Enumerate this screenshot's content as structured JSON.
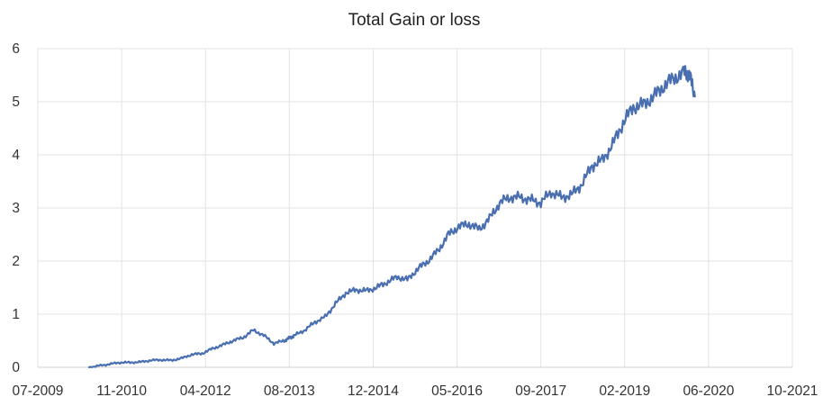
{
  "chart_data": {
    "type": "line",
    "title": "Total Gain or loss",
    "xlabel": "",
    "ylabel": "",
    "x_tick_labels": [
      "07-2009",
      "11-2010",
      "04-2012",
      "08-2013",
      "12-2014",
      "05-2016",
      "09-2017",
      "02-2019",
      "06-2020",
      "10-2021"
    ],
    "y_tick_labels": [
      "0",
      "1",
      "2",
      "3",
      "4",
      "5",
      "6"
    ],
    "xlim": [
      "2009-07",
      "2021-10"
    ],
    "ylim": [
      0,
      6
    ],
    "grid": true,
    "legend": "none",
    "colors": {
      "series": "#4a6fb1",
      "grid": "#e3e3e3",
      "text": "#333333"
    },
    "series": [
      {
        "x": [
          "2010-05",
          "2010-07",
          "2010-09",
          "2010-11",
          "2011-01",
          "2011-03",
          "2011-05",
          "2011-07",
          "2011-09",
          "2011-11",
          "2012-01",
          "2012-03",
          "2012-05",
          "2012-07",
          "2012-09",
          "2012-11",
          "2013-01",
          "2013-03",
          "2013-05",
          "2013-07",
          "2013-08",
          "2013-09",
          "2013-11",
          "2014-01",
          "2014-03",
          "2014-05",
          "2014-07",
          "2014-09",
          "2014-11",
          "2015-01",
          "2015-03",
          "2015-05",
          "2015-07",
          "2015-09",
          "2015-11",
          "2016-01",
          "2016-03",
          "2016-05",
          "2016-07",
          "2016-09",
          "2016-11",
          "2017-01",
          "2017-03",
          "2017-05",
          "2017-07",
          "2017-09",
          "2017-11",
          "2018-01",
          "2018-03",
          "2018-05",
          "2018-07",
          "2018-09",
          "2018-11",
          "2019-01",
          "2019-03",
          "2019-05",
          "2019-07",
          "2019-09",
          "2019-11",
          "2020-01",
          "2020-02",
          "2020-03"
        ],
        "values": [
          0.0,
          0.03,
          0.06,
          0.09,
          0.09,
          0.1,
          0.13,
          0.14,
          0.13,
          0.17,
          0.24,
          0.26,
          0.35,
          0.42,
          0.5,
          0.56,
          0.7,
          0.6,
          0.45,
          0.5,
          0.55,
          0.6,
          0.7,
          0.85,
          0.95,
          1.2,
          1.4,
          1.46,
          1.44,
          1.5,
          1.6,
          1.7,
          1.65,
          1.85,
          2.0,
          2.2,
          2.5,
          2.65,
          2.7,
          2.6,
          2.8,
          3.1,
          3.2,
          3.2,
          3.15,
          3.1,
          3.3,
          3.2,
          3.25,
          3.45,
          3.8,
          3.9,
          4.2,
          4.6,
          4.9,
          4.95,
          5.1,
          5.3,
          5.45,
          5.55,
          5.5,
          5.1
        ]
      }
    ]
  }
}
